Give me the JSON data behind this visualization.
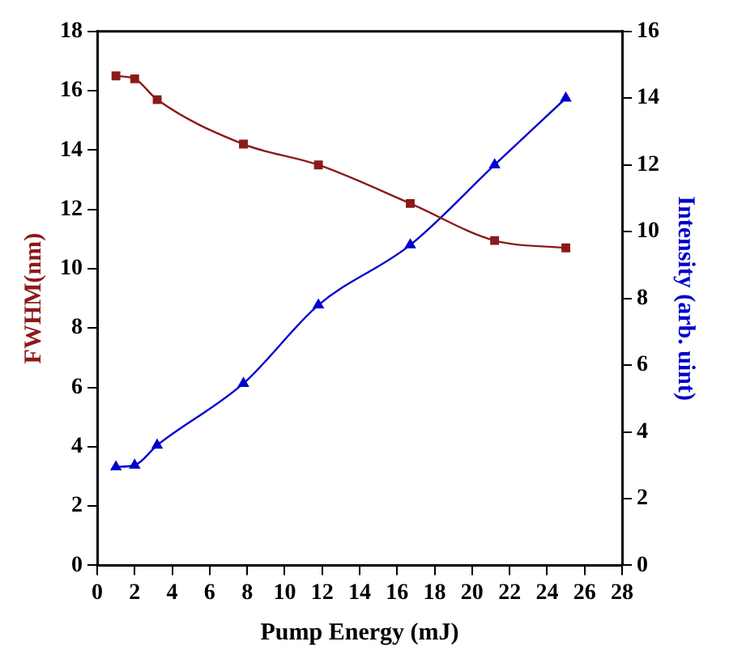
{
  "chart_data": {
    "type": "line",
    "xlabel": "Pump Energy (mJ)",
    "ylabel": "FWHM(nm)",
    "y2label": "Intensity (arb. uint)",
    "x": [
      1,
      2,
      3.2,
      7.8,
      11.8,
      16.7,
      21.2,
      25
    ],
    "series": [
      {
        "color": "#8b1a1a",
        "marker": "square",
        "values": [
          16.5,
          16.4,
          15.7,
          14.2,
          13.5,
          12.2,
          10.95,
          10.7
        ]
      },
      {
        "color": "#0000cc",
        "marker": "triangle",
        "axis": "y2",
        "values": [
          2.95,
          3.0,
          3.6,
          5.45,
          7.8,
          9.6,
          12.0,
          14.0
        ]
      }
    ],
    "xlim": [
      0,
      28
    ],
    "xticks": [
      0,
      2,
      4,
      6,
      8,
      10,
      12,
      14,
      16,
      18,
      20,
      22,
      24,
      26,
      28
    ],
    "ylim": [
      0,
      18
    ],
    "yticks": [
      0,
      2,
      4,
      6,
      8,
      10,
      12,
      14,
      16,
      18
    ],
    "y2lim": [
      0,
      16
    ],
    "y2ticks": [
      0,
      2,
      4,
      6,
      8,
      10,
      12,
      14,
      16
    ],
    "grid": false,
    "legend": false,
    "line_style": "solid"
  }
}
